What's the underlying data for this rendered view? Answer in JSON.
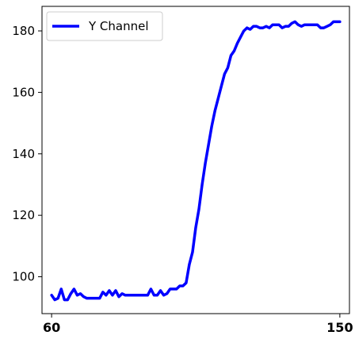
{
  "chart_data": {
    "type": "line",
    "title": "",
    "xlabel": "",
    "ylabel": "",
    "xlim": [
      57,
      153
    ],
    "ylim": [
      88,
      188
    ],
    "x_ticks": [
      60,
      150
    ],
    "y_ticks": [
      100,
      120,
      140,
      160,
      180
    ],
    "grid": false,
    "legend_position": "top-left",
    "series": [
      {
        "name": "Y Channel",
        "color": "#0000ff",
        "x": [
          60,
          61,
          62,
          63,
          64,
          65,
          66,
          67,
          68,
          69,
          70,
          71,
          72,
          73,
          74,
          75,
          76,
          77,
          78,
          79,
          80,
          81,
          82,
          83,
          84,
          85,
          86,
          87,
          88,
          89,
          90,
          91,
          92,
          93,
          94,
          95,
          96,
          97,
          98,
          99,
          100,
          101,
          102,
          103,
          104,
          105,
          106,
          107,
          108,
          109,
          110,
          111,
          112,
          113,
          114,
          115,
          116,
          117,
          118,
          119,
          120,
          121,
          122,
          123,
          124,
          125,
          126,
          127,
          128,
          129,
          130,
          131,
          132,
          133,
          134,
          135,
          136,
          137,
          138,
          139,
          140,
          141,
          142,
          143,
          144,
          145,
          146,
          147,
          148,
          149,
          150
        ],
        "values": [
          94,
          92.5,
          93,
          96,
          92.5,
          92.5,
          94.5,
          96,
          94,
          94.5,
          93.5,
          93,
          93,
          93,
          93,
          93,
          95,
          94,
          95.5,
          94,
          95.5,
          93.5,
          94.5,
          94,
          94,
          94,
          94,
          94,
          94,
          94,
          94,
          96,
          94,
          94,
          95.5,
          94,
          94.5,
          96,
          96,
          96,
          97,
          97,
          98,
          104,
          108,
          116,
          122,
          130,
          137,
          143,
          149,
          154,
          158,
          162,
          166,
          168,
          172,
          173.5,
          176,
          178,
          180,
          181,
          180.5,
          181.5,
          181.5,
          181,
          181,
          181.5,
          181,
          182,
          182,
          182,
          181,
          181.5,
          181.5,
          182.5,
          183,
          182,
          181.5,
          182,
          182,
          182,
          182,
          182,
          181,
          181,
          181.5,
          182,
          183,
          183,
          183
        ]
      }
    ]
  }
}
